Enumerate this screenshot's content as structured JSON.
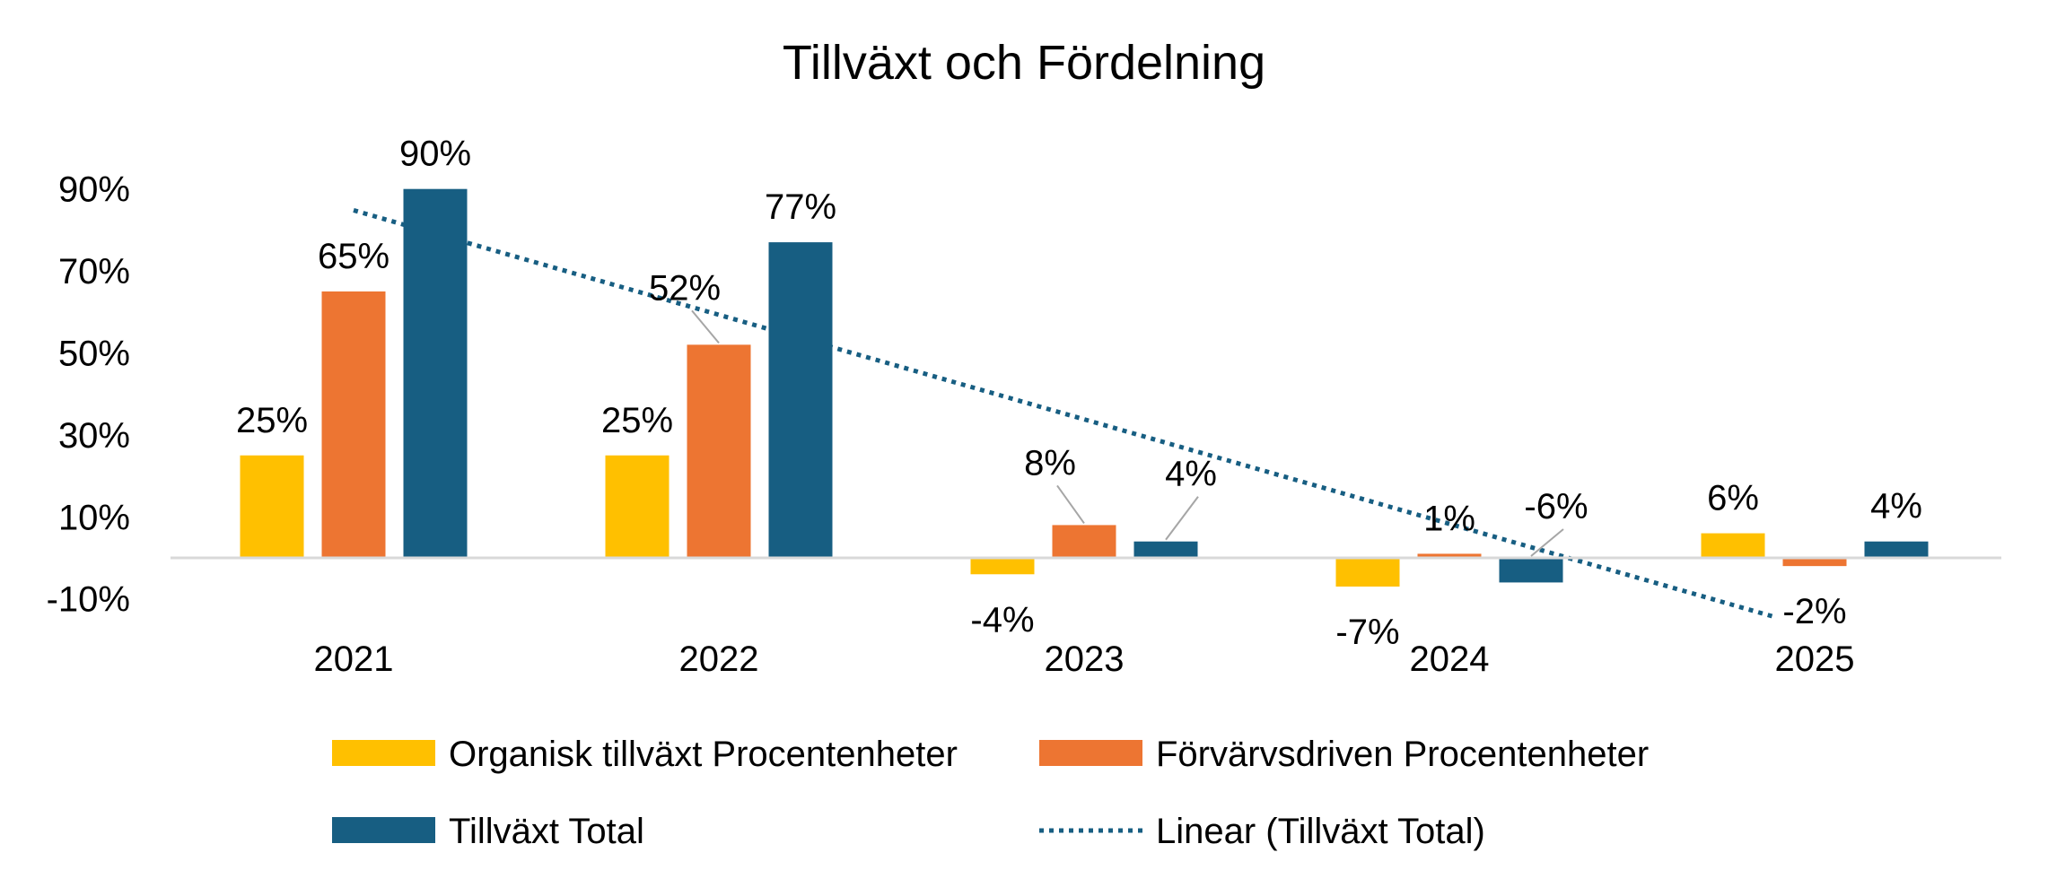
{
  "chart_data": {
    "type": "bar",
    "title": "Tillväxt och Fördelning",
    "categories": [
      "2021",
      "2022",
      "2023",
      "2024",
      "2025"
    ],
    "series": [
      {
        "name": "Organisk tillväxt Procentenheter",
        "color": "#FFC000",
        "values": [
          25,
          25,
          -4,
          -7,
          6
        ],
        "labels": [
          "25%",
          "25%",
          "-4%",
          "-7%",
          "6%"
        ]
      },
      {
        "name": "Förvärvsdriven Procentenheter",
        "color": "#ED7532",
        "values": [
          65,
          52,
          8,
          1,
          -2
        ],
        "labels": [
          "65%",
          "52%",
          "8%",
          "1%",
          "-2%"
        ]
      },
      {
        "name": "Tillväxt Total",
        "color": "#175E82",
        "values": [
          90,
          77,
          4,
          -6,
          4
        ],
        "labels": [
          "90%",
          "77%",
          "4%",
          "-6%",
          "4%"
        ]
      }
    ],
    "trendline": {
      "name": "Linear (Tillväxt Total)",
      "type": "linear",
      "series": "Tillväxt Total",
      "color": "#175E82",
      "style": "dotted"
    },
    "yticks": [
      {
        "value": 90,
        "label": "90%"
      },
      {
        "value": 70,
        "label": "70%"
      },
      {
        "value": 50,
        "label": "50%"
      },
      {
        "value": 30,
        "label": "30%"
      },
      {
        "value": 10,
        "label": "10%"
      },
      {
        "value": -10,
        "label": "-10%"
      }
    ],
    "ylim": [
      -10,
      90
    ],
    "xlabel": "",
    "ylabel": "",
    "grid": false,
    "legend_position": "bottom"
  }
}
